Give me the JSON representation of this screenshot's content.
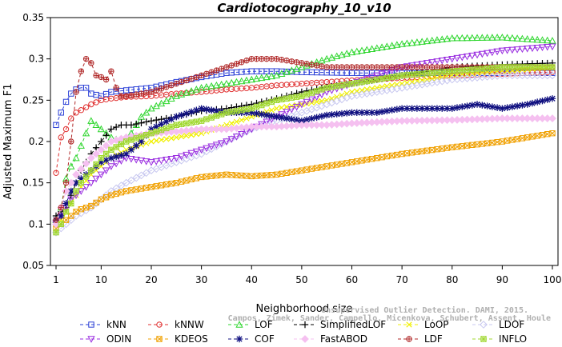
{
  "chart_data": {
    "type": "line",
    "title": "Cardiotocography_10_v10",
    "xlabel": "Neighborhood size",
    "ylabel": "Adjusted Maximum F1",
    "xlim": [
      1,
      100
    ],
    "ylim": [
      0.05,
      0.35
    ],
    "xticks": [
      "1",
      "10",
      "20",
      "30",
      "40",
      "50",
      "60",
      "70",
      "80",
      "90",
      "100"
    ],
    "yticks": [
      "0.05",
      "0.1",
      "0.15",
      "0.2",
      "0.25",
      "0.3",
      "0.35"
    ],
    "grid": false,
    "legend_position": "bottom",
    "watermark": {
      "line1": "Unsupervised Outlier Detection. DAMI, 2015.",
      "line2": "Campos, Zimek, Sander, Campello, Micenkova, Schubert, Assent, Houle"
    },
    "series": [
      {
        "name": "kNN",
        "color": "#2a3fd6",
        "marker": "square",
        "dash": "dashed",
        "x": [
          1,
          2,
          3,
          4,
          5,
          6,
          7,
          8,
          10,
          12,
          15,
          20,
          25,
          30,
          35,
          40,
          45,
          50,
          60,
          70,
          80,
          90,
          100
        ],
        "y": [
          0.22,
          0.235,
          0.248,
          0.258,
          0.263,
          0.265,
          0.265,
          0.258,
          0.255,
          0.26,
          0.262,
          0.265,
          0.272,
          0.278,
          0.283,
          0.285,
          0.285,
          0.284,
          0.283,
          0.283,
          0.283,
          0.283,
          0.283
        ]
      },
      {
        "name": "kNNW",
        "color": "#e03030",
        "marker": "circle",
        "dash": "dashed",
        "x": [
          1,
          2,
          3,
          4,
          5,
          6,
          8,
          10,
          12,
          15,
          20,
          25,
          30,
          35,
          40,
          45,
          50,
          60,
          70,
          80,
          90,
          100
        ],
        "y": [
          0.162,
          0.205,
          0.215,
          0.228,
          0.235,
          0.238,
          0.245,
          0.25,
          0.252,
          0.254,
          0.255,
          0.258,
          0.26,
          0.263,
          0.265,
          0.268,
          0.27,
          0.274,
          0.277,
          0.28,
          0.282,
          0.284
        ]
      },
      {
        "name": "LOF",
        "color": "#2fd62f",
        "marker": "triangle",
        "dash": "dashed",
        "x": [
          1,
          2,
          3,
          4,
          5,
          6,
          7,
          8,
          9,
          10,
          12,
          14,
          16,
          18,
          20,
          25,
          30,
          35,
          40,
          45,
          50,
          55,
          60,
          70,
          80,
          90,
          100
        ],
        "y": [
          0.105,
          0.12,
          0.155,
          0.17,
          0.18,
          0.195,
          0.21,
          0.225,
          0.22,
          0.215,
          0.205,
          0.2,
          0.21,
          0.23,
          0.24,
          0.255,
          0.265,
          0.27,
          0.275,
          0.28,
          0.29,
          0.3,
          0.308,
          0.318,
          0.325,
          0.326,
          0.322
        ]
      },
      {
        "name": "SimplifiedLOF",
        "color": "#000000",
        "marker": "plus",
        "dash": "dashed",
        "x": [
          1,
          2,
          3,
          4,
          5,
          6,
          8,
          10,
          12,
          14,
          16,
          20,
          25,
          30,
          35,
          40,
          45,
          50,
          55,
          60,
          70,
          80,
          90,
          100
        ],
        "y": [
          0.11,
          0.115,
          0.12,
          0.135,
          0.15,
          0.165,
          0.185,
          0.2,
          0.215,
          0.22,
          0.22,
          0.225,
          0.23,
          0.237,
          0.24,
          0.245,
          0.252,
          0.26,
          0.266,
          0.27,
          0.28,
          0.29,
          0.293,
          0.295
        ]
      },
      {
        "name": "LoOP",
        "color": "#f0f000",
        "marker": "cross",
        "dash": "dashed",
        "x": [
          1,
          2,
          3,
          4,
          5,
          6,
          8,
          10,
          12,
          15,
          20,
          25,
          30,
          35,
          40,
          45,
          50,
          55,
          60,
          70,
          80,
          90,
          100
        ],
        "y": [
          0.1,
          0.105,
          0.115,
          0.125,
          0.135,
          0.145,
          0.16,
          0.17,
          0.18,
          0.19,
          0.2,
          0.205,
          0.21,
          0.22,
          0.23,
          0.24,
          0.245,
          0.25,
          0.26,
          0.27,
          0.28,
          0.285,
          0.29
        ]
      },
      {
        "name": "LDOF",
        "color": "#c8c8f0",
        "marker": "diamond",
        "dash": "dashed",
        "x": [
          1,
          2,
          3,
          5,
          8,
          10,
          12,
          15,
          20,
          25,
          30,
          35,
          40,
          45,
          50,
          55,
          60,
          70,
          80,
          90,
          100
        ],
        "y": [
          0.09,
          0.095,
          0.1,
          0.11,
          0.12,
          0.13,
          0.14,
          0.15,
          0.165,
          0.175,
          0.185,
          0.2,
          0.215,
          0.225,
          0.235,
          0.245,
          0.255,
          0.265,
          0.275,
          0.28,
          0.28
        ]
      },
      {
        "name": "ODIN",
        "color": "#9a2ee0",
        "marker": "triangle-down",
        "dash": "dashed",
        "x": [
          1,
          2,
          3,
          4,
          5,
          6,
          8,
          10,
          12,
          15,
          20,
          25,
          30,
          35,
          40,
          45,
          50,
          55,
          60,
          70,
          80,
          90,
          100
        ],
        "y": [
          0.1,
          0.11,
          0.12,
          0.13,
          0.135,
          0.14,
          0.15,
          0.16,
          0.17,
          0.18,
          0.175,
          0.18,
          0.19,
          0.2,
          0.215,
          0.23,
          0.245,
          0.26,
          0.27,
          0.29,
          0.3,
          0.31,
          0.315
        ]
      },
      {
        "name": "KDEOS",
        "color": "#f0a000",
        "marker": "square-x",
        "dash": "dashed",
        "x": [
          1,
          2,
          3,
          4,
          5,
          6,
          8,
          10,
          12,
          15,
          20,
          25,
          30,
          35,
          40,
          45,
          50,
          55,
          60,
          70,
          80,
          90,
          100
        ],
        "y": [
          0.095,
          0.1,
          0.105,
          0.11,
          0.115,
          0.118,
          0.122,
          0.13,
          0.135,
          0.14,
          0.145,
          0.15,
          0.157,
          0.16,
          0.158,
          0.16,
          0.165,
          0.17,
          0.175,
          0.185,
          0.193,
          0.2,
          0.21
        ]
      },
      {
        "name": "COF",
        "color": "#101080",
        "marker": "asterisk",
        "dash": "dashed",
        "x": [
          1,
          2,
          3,
          4,
          5,
          6,
          8,
          10,
          12,
          15,
          18,
          20,
          25,
          30,
          35,
          40,
          45,
          50,
          55,
          60,
          65,
          70,
          75,
          80,
          85,
          90,
          95,
          100
        ],
        "y": [
          0.105,
          0.11,
          0.125,
          0.14,
          0.15,
          0.155,
          0.165,
          0.175,
          0.18,
          0.185,
          0.2,
          0.215,
          0.23,
          0.24,
          0.235,
          0.235,
          0.23,
          0.225,
          0.232,
          0.235,
          0.235,
          0.24,
          0.24,
          0.24,
          0.245,
          0.24,
          0.245,
          0.252
        ]
      },
      {
        "name": "FastABOD",
        "color": "#f5c0f0",
        "marker": "diamond-filled",
        "dash": "dashed",
        "x": [
          1,
          2,
          3,
          5,
          8,
          10,
          12,
          15,
          20,
          25,
          30,
          35,
          40,
          45,
          50,
          55,
          60,
          70,
          80,
          90,
          100
        ],
        "y": [
          0.1,
          0.12,
          0.14,
          0.16,
          0.18,
          0.19,
          0.2,
          0.205,
          0.21,
          0.212,
          0.215,
          0.215,
          0.218,
          0.218,
          0.22,
          0.22,
          0.222,
          0.225,
          0.226,
          0.228,
          0.228
        ]
      },
      {
        "name": "LDF",
        "color": "#b02828",
        "marker": "circle-plus",
        "dash": "dashed",
        "x": [
          1,
          2,
          3,
          4,
          5,
          6,
          7,
          8,
          9,
          10,
          11,
          12,
          13,
          14,
          15,
          20,
          25,
          30,
          35,
          40,
          45,
          50,
          55,
          60,
          70,
          80,
          90,
          100
        ],
        "y": [
          0.105,
          0.12,
          0.15,
          0.2,
          0.26,
          0.285,
          0.3,
          0.295,
          0.28,
          0.278,
          0.275,
          0.285,
          0.265,
          0.255,
          0.255,
          0.26,
          0.27,
          0.28,
          0.29,
          0.3,
          0.3,
          0.295,
          0.29,
          0.29,
          0.29,
          0.29,
          0.29,
          0.29
        ]
      },
      {
        "name": "INFLO",
        "color": "#a0d830",
        "marker": "square-star",
        "dash": "dashed",
        "x": [
          1,
          2,
          3,
          4,
          5,
          6,
          8,
          10,
          12,
          15,
          20,
          25,
          30,
          35,
          40,
          45,
          50,
          55,
          60,
          70,
          80,
          90,
          100
        ],
        "y": [
          0.09,
          0.1,
          0.115,
          0.125,
          0.14,
          0.15,
          0.165,
          0.18,
          0.19,
          0.2,
          0.21,
          0.22,
          0.225,
          0.235,
          0.24,
          0.25,
          0.255,
          0.265,
          0.27,
          0.28,
          0.285,
          0.29,
          0.29
        ]
      }
    ]
  }
}
